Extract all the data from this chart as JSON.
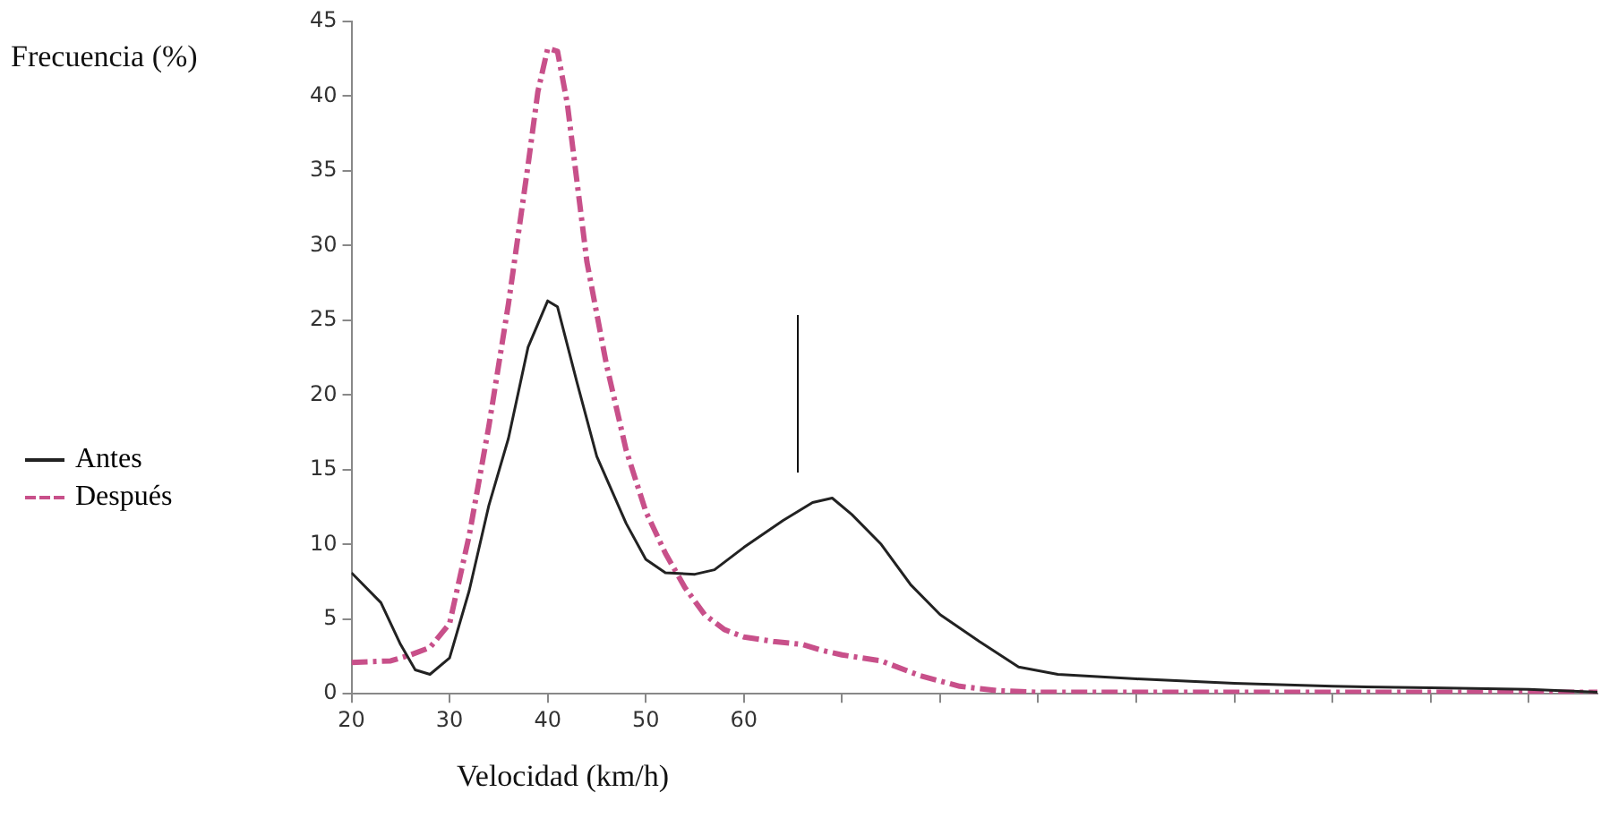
{
  "chart_data": {
    "type": "line",
    "xlabel": "Velocidad (km/h)",
    "ylabel": "Frecuencia (%)",
    "xlim": [
      20,
      147
    ],
    "xticks": [
      20,
      30,
      40,
      50,
      60,
      {
        "value": 70,
        "label": null
      },
      {
        "value": 80,
        "label": null
      },
      {
        "value": 90,
        "label": null
      },
      {
        "value": 100,
        "label": null
      },
      {
        "value": 110,
        "label": null
      },
      {
        "value": 120,
        "label": null
      },
      {
        "value": 130,
        "label": null
      },
      {
        "value": 140,
        "label": null
      }
    ],
    "ylim": [
      0,
      45
    ],
    "yticks": [
      0,
      5,
      10,
      15,
      20,
      25,
      30,
      35,
      40,
      45
    ],
    "grid": false,
    "legend": "left",
    "marker": "none",
    "series": [
      {
        "name": "Antes",
        "color": "#222222",
        "line_style": "solid",
        "x": [
          20,
          23,
          25,
          26.5,
          28,
          30,
          32,
          34,
          36,
          38,
          40,
          41,
          43,
          45,
          48,
          50,
          52,
          55,
          57,
          60,
          64,
          67,
          69,
          71,
          74,
          77,
          80,
          84,
          88,
          92,
          100,
          110,
          120,
          130,
          140,
          147
        ],
        "values": [
          8.1,
          6.1,
          3.3,
          1.6,
          1.3,
          2.4,
          6.9,
          12.6,
          17.1,
          23.2,
          26.3,
          25.9,
          20.8,
          15.9,
          11.4,
          9.0,
          8.1,
          8.0,
          8.3,
          9.8,
          11.6,
          12.8,
          13.1,
          12.0,
          10.0,
          7.3,
          5.3,
          3.5,
          1.8,
          1.3,
          1.0,
          0.7,
          0.5,
          0.4,
          0.3,
          0.1
        ]
      },
      {
        "name": "Después",
        "color": "#c8508a",
        "line_style": "dashed",
        "x": [
          20,
          24,
          26,
          28,
          30,
          32,
          34,
          36,
          38,
          39,
          40,
          41,
          42,
          43,
          44,
          46,
          48,
          50,
          52,
          54,
          56,
          58,
          60,
          63,
          66,
          68,
          70,
          74,
          78,
          82,
          86,
          90,
          100,
          120,
          147
        ],
        "values": [
          2.1,
          2.2,
          2.6,
          3.1,
          4.7,
          10.6,
          17.9,
          26.1,
          35.4,
          40.3,
          43.2,
          43.0,
          39.5,
          34.2,
          28.9,
          22.0,
          16.3,
          12.2,
          9.4,
          7.1,
          5.3,
          4.3,
          3.8,
          3.5,
          3.3,
          2.9,
          2.6,
          2.2,
          1.2,
          0.5,
          0.2,
          0.1,
          0.1,
          0.1,
          0.1
        ]
      }
    ]
  }
}
